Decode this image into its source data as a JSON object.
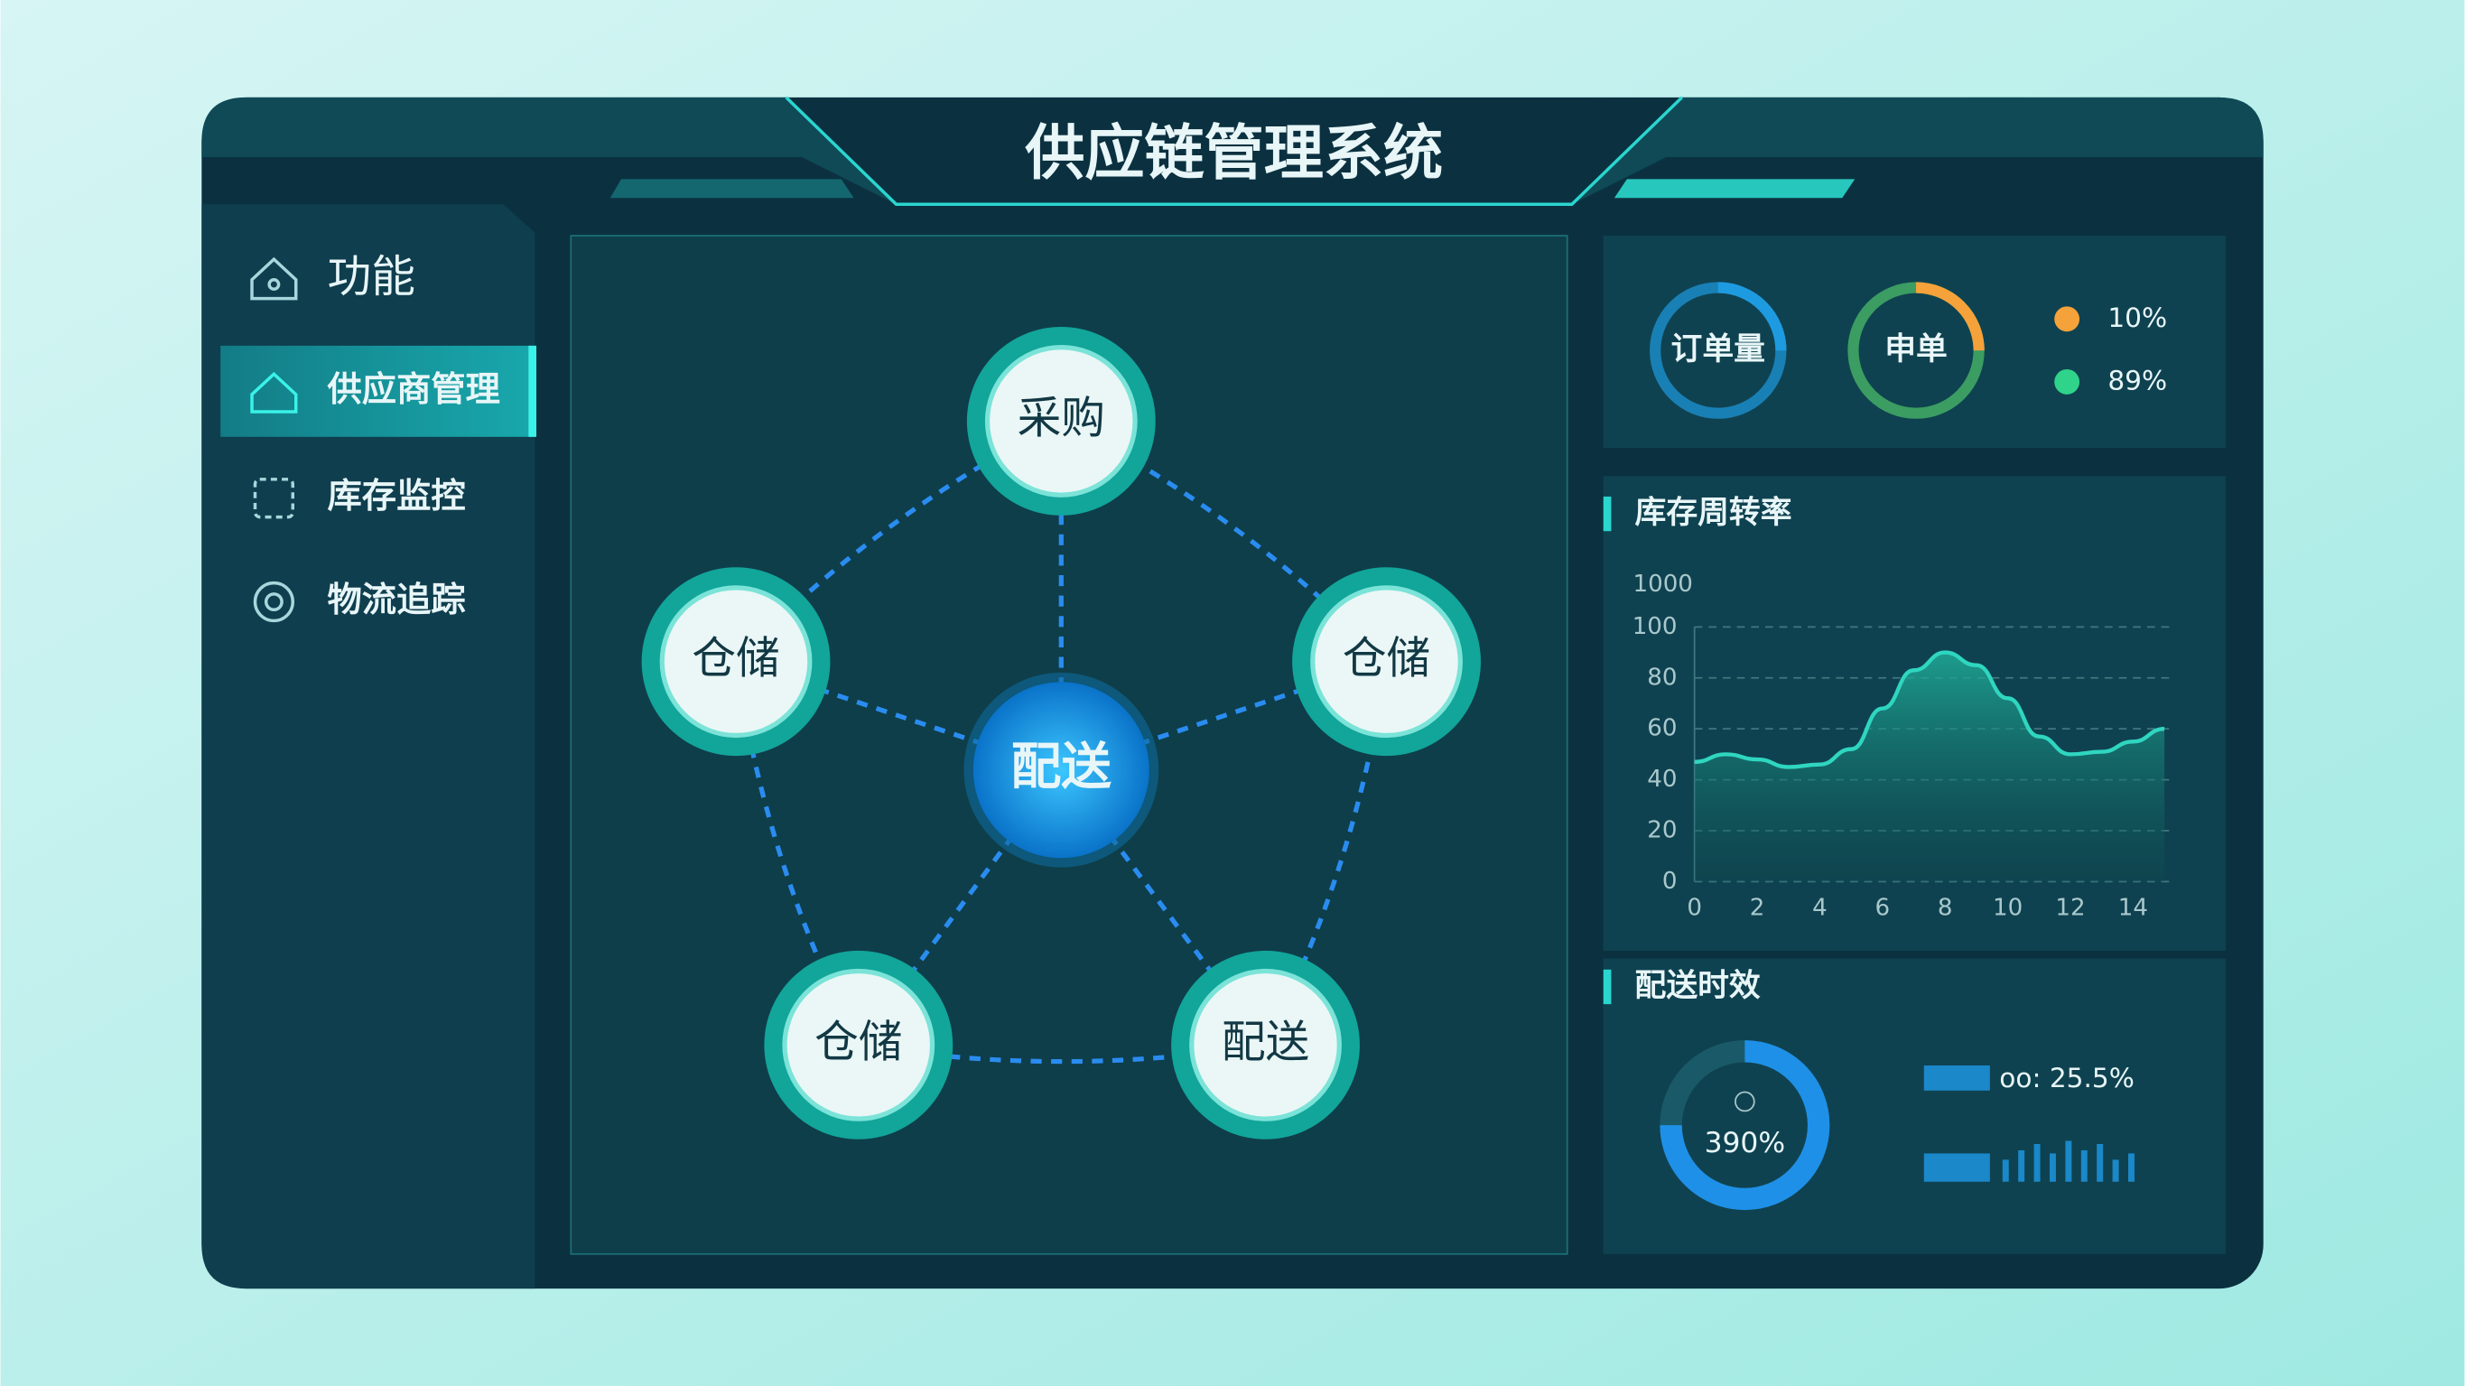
{
  "header": {
    "title": "供应链管理系统"
  },
  "sidebar": {
    "heading": "功能",
    "items": [
      "供应商管理",
      "库存监控",
      "物流追踪"
    ]
  },
  "network": {
    "center": "配送",
    "nodes": [
      "采购",
      "仓储",
      "仓储",
      "仓储",
      "配送"
    ]
  },
  "stats": {
    "rings": [
      "订单量",
      "申单"
    ],
    "legend": [
      {
        "label": "10%",
        "color": "#f5a23a"
      },
      {
        "label": "89%",
        "color": "#2fd48a"
      }
    ]
  },
  "chart_data": {
    "type": "area",
    "title": "库存周转率",
    "y_top_label": "1000",
    "x": [
      0,
      1,
      2,
      3,
      4,
      5,
      6,
      7,
      8,
      9,
      10,
      11,
      12,
      13,
      14,
      15
    ],
    "values": [
      47,
      50,
      48,
      45,
      46,
      52,
      68,
      83,
      90,
      85,
      72,
      57,
      50,
      51,
      55,
      60
    ],
    "color": "#2fd6c0",
    "xlim": [
      0,
      15.3
    ],
    "ylim": [
      0,
      100
    ],
    "xticks": [
      0,
      2,
      4,
      6,
      8,
      10,
      12,
      14
    ],
    "yticks": [
      0,
      20,
      40,
      60,
      80,
      100
    ],
    "grid": true
  },
  "delivery": {
    "title": "配送时效",
    "donut_label": "390%",
    "bar_label": "oo: 25.5%"
  }
}
